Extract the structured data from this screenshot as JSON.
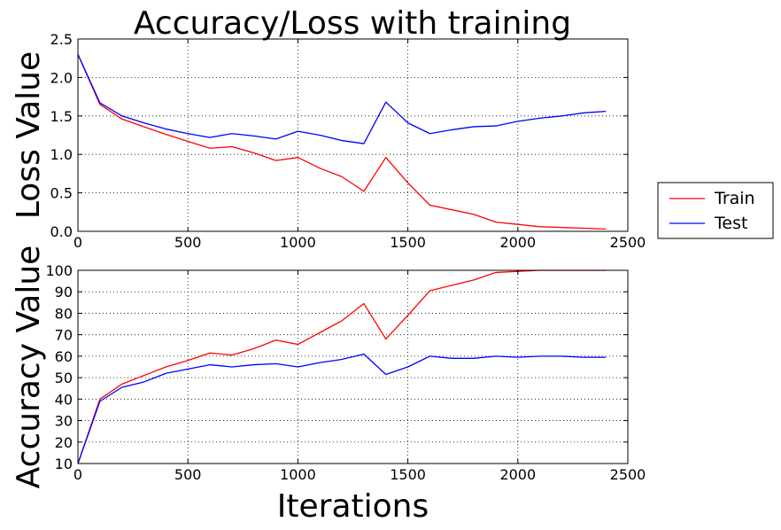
{
  "chart_data": [
    {
      "type": "line",
      "title": "Accuracy/Loss with training",
      "xlabel": "",
      "ylabel": "Loss Value",
      "xlim": [
        0,
        2500
      ],
      "ylim": [
        0.0,
        2.5
      ],
      "xticks": [
        0,
        500,
        1000,
        1500,
        2000,
        2500
      ],
      "yticks": [
        0.0,
        0.5,
        1.0,
        1.5,
        2.0,
        2.5
      ],
      "xtick_labels": [
        "0",
        "500",
        "1000",
        "1500",
        "2000",
        "2500"
      ],
      "ytick_labels": [
        "0.0",
        "0.5",
        "1.0",
        "1.5",
        "2.0",
        "2.5"
      ],
      "grid": true,
      "legend_position": "right",
      "x": [
        0,
        100,
        200,
        300,
        400,
        500,
        600,
        700,
        800,
        900,
        1000,
        1100,
        1200,
        1300,
        1400,
        1500,
        1600,
        1700,
        1800,
        1900,
        2000,
        2100,
        2200,
        2300,
        2400
      ],
      "series": [
        {
          "name": "Train",
          "color": "#ff0000",
          "values": [
            2.3,
            1.65,
            1.46,
            1.36,
            1.26,
            1.17,
            1.08,
            1.1,
            1.02,
            0.92,
            0.96,
            0.82,
            0.71,
            0.52,
            0.96,
            0.63,
            0.34,
            0.28,
            0.22,
            0.12,
            0.09,
            0.06,
            0.05,
            0.04,
            0.03
          ]
        },
        {
          "name": "Test",
          "color": "#0000ff",
          "values": [
            2.3,
            1.67,
            1.5,
            1.41,
            1.33,
            1.27,
            1.22,
            1.27,
            1.24,
            1.2,
            1.3,
            1.25,
            1.18,
            1.14,
            1.68,
            1.41,
            1.27,
            1.32,
            1.36,
            1.37,
            1.43,
            1.47,
            1.5,
            1.54,
            1.56
          ]
        }
      ]
    },
    {
      "type": "line",
      "title": "",
      "xlabel": "Iterations",
      "ylabel": "Accuracy Value",
      "xlim": [
        0,
        2500
      ],
      "ylim": [
        10,
        100
      ],
      "xticks": [
        0,
        500,
        1000,
        1500,
        2000,
        2500
      ],
      "yticks": [
        10,
        20,
        30,
        40,
        50,
        60,
        70,
        80,
        90,
        100
      ],
      "xtick_labels": [
        "0",
        "500",
        "1000",
        "1500",
        "2000",
        "2500"
      ],
      "ytick_labels": [
        "10",
        "20",
        "30",
        "40",
        "50",
        "60",
        "70",
        "80",
        "90",
        "100"
      ],
      "grid": true,
      "x": [
        0,
        100,
        200,
        300,
        400,
        500,
        600,
        700,
        800,
        900,
        1000,
        1100,
        1200,
        1300,
        1400,
        1500,
        1600,
        1700,
        1800,
        1900,
        2000,
        2100,
        2200,
        2300,
        2400
      ],
      "series": [
        {
          "name": "Train",
          "color": "#ff0000",
          "values": [
            10,
            40,
            47,
            51,
            55,
            58,
            61.5,
            60.5,
            63.5,
            67.5,
            65.5,
            71,
            76.5,
            84.5,
            68,
            79,
            90.5,
            93,
            95.5,
            99,
            99.5,
            100,
            100,
            100,
            100
          ]
        },
        {
          "name": "Test",
          "color": "#0000ff",
          "values": [
            10,
            39,
            45.5,
            48,
            52,
            54,
            56,
            55,
            56,
            56.5,
            55,
            57,
            58.5,
            61,
            51.5,
            55,
            60,
            59,
            59,
            60,
            59.5,
            60,
            60,
            59.5,
            59.5
          ]
        }
      ]
    }
  ],
  "legend": {
    "entries": [
      {
        "label": "Train",
        "color": "#ff0000"
      },
      {
        "label": "Test",
        "color": "#0000ff"
      }
    ]
  }
}
